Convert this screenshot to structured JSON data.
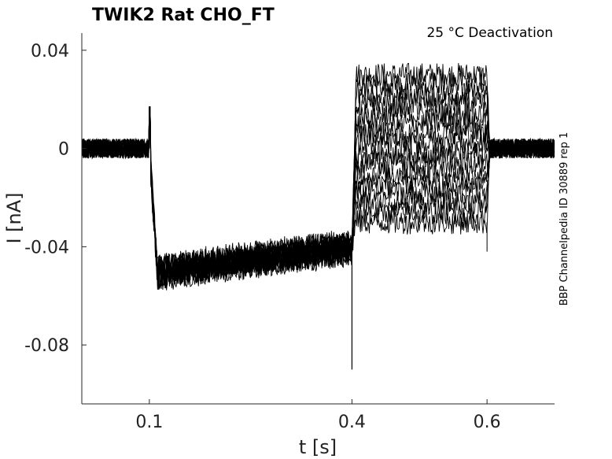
{
  "chart_data": {
    "type": "line",
    "title": "TWIK2  Rat  CHO_FT",
    "annotation": "25 °C  Deactivation",
    "side_label": "BBP Channelpedia ID 30889 rep 1",
    "xlabel": "t [s]",
    "ylabel": "I [nA]",
    "xlim": [
      0.0,
      0.7
    ],
    "ylim": [
      -0.104,
      0.047
    ],
    "xticks": [
      0.1,
      0.4,
      0.6
    ],
    "xtick_labels": [
      "0.1",
      "0.4",
      "0.6"
    ],
    "yticks": [
      0.04,
      0,
      -0.04,
      -0.08
    ],
    "ytick_labels": [
      "0.04",
      "0",
      "-0.04",
      "-0.08"
    ],
    "grid": false,
    "line_color": "#000000",
    "protocol": {
      "baseline_current": 0.0,
      "step1_start": 0.1,
      "step1_peak_current": -0.05,
      "step1_end_current": -0.04,
      "capacitive_spike_at_0.1": 0.017,
      "step2_start": 0.4,
      "capacitive_spike_at_0.4": -0.09,
      "step2_end": 0.6
    },
    "series_levels_step2": [
      0.03,
      0.026,
      0.022,
      0.018,
      0.014,
      0.01,
      0.006,
      0.002,
      -0.002,
      -0.006,
      -0.01,
      -0.014,
      -0.018,
      -0.022,
      -0.026,
      -0.03
    ]
  }
}
